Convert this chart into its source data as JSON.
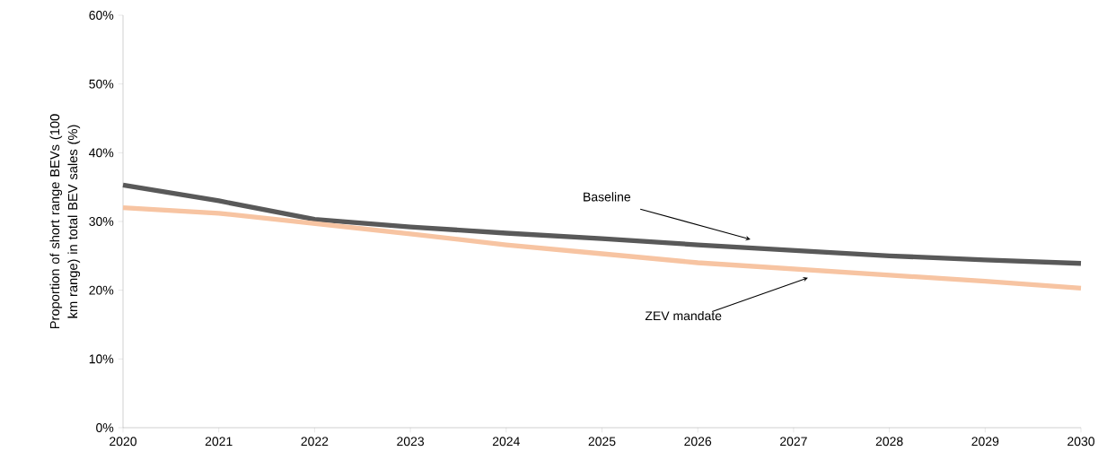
{
  "chart_data": {
    "type": "line",
    "ylabel": "Proportion of short range BEVs (100 km  range) in total BEV sales (%)",
    "x": [
      2020,
      2021,
      2022,
      2023,
      2024,
      2025,
      2026,
      2027,
      2028,
      2029,
      2030
    ],
    "series": [
      {
        "color": "#595959",
        "values": [
          35.3,
          33.0,
          30.3,
          29.2,
          28.3,
          27.5,
          26.6,
          25.8,
          25.0,
          24.4,
          23.9
        ]
      },
      {
        "color": "#f7c4a2",
        "values": [
          32.0,
          31.2,
          29.7,
          28.2,
          26.6,
          25.3,
          24.0,
          23.1,
          22.2,
          21.3,
          20.3
        ]
      }
    ],
    "annotations": [
      "Baseline",
      "ZEV mandate"
    ],
    "xlim": [
      2020,
      2030
    ],
    "xticks": [
      2020,
      2021,
      2022,
      2023,
      2024,
      2025,
      2026,
      2027,
      2028,
      2029,
      2030
    ],
    "ylim": [
      0,
      60
    ],
    "yticks": [
      {
        "value": 0,
        "label": "0%"
      },
      {
        "value": 10,
        "label": "10%"
      },
      {
        "value": 20,
        "label": "20%"
      },
      {
        "value": 30,
        "label": "30%"
      },
      {
        "value": 40,
        "label": "40%"
      },
      {
        "value": 50,
        "label": "50%"
      },
      {
        "value": 60,
        "label": "60%"
      }
    ],
    "grid": false,
    "marker": "none",
    "line_style": "solid"
  }
}
